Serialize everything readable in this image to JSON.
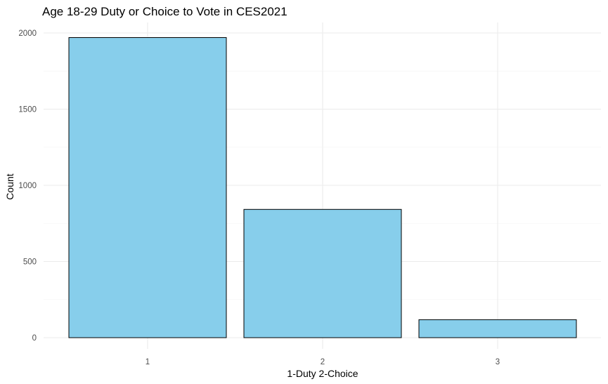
{
  "chart_data": {
    "type": "bar",
    "title": "Age 18-29 Duty or Choice to Vote in CES2021",
    "xlabel": "1-Duty 2-Choice",
    "ylabel": "Count",
    "categories": [
      "1",
      "2",
      "3"
    ],
    "values": [
      1970,
      842,
      118
    ],
    "ylim": [
      0,
      2000
    ],
    "yticks": [
      0,
      500,
      1000,
      1500,
      2000
    ],
    "grid": true,
    "colors": {
      "bar_fill": "#87CEEB",
      "bar_stroke": "#000000",
      "grid_major": "#ebebeb",
      "grid_minor": "#f5f5f5"
    }
  }
}
